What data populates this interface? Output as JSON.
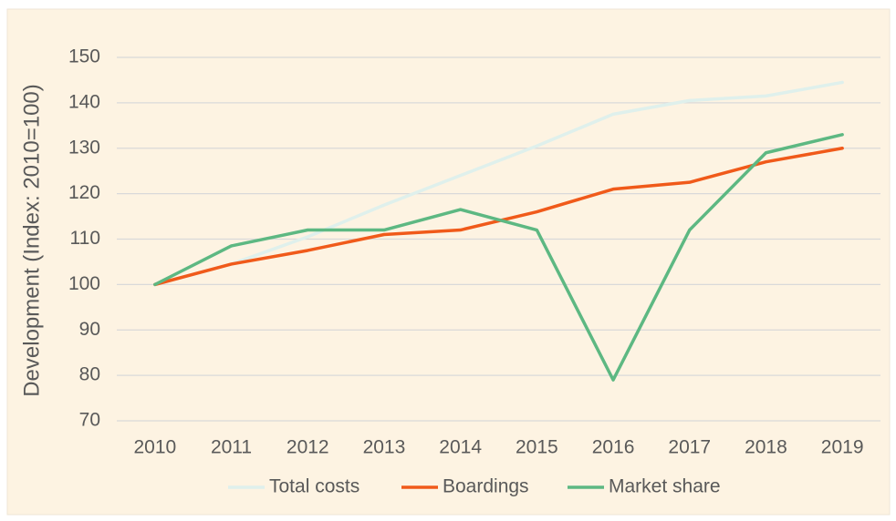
{
  "chart_data": {
    "type": "line",
    "y_label": "Development (Index: 2010=100)",
    "categories": [
      "2010",
      "2011",
      "2012",
      "2013",
      "2014",
      "2015",
      "2016",
      "2017",
      "2018",
      "2019"
    ],
    "series": [
      {
        "name": "Total costs",
        "color": "#dff0ec",
        "values": [
          100,
          104.5,
          110.5,
          117.5,
          124,
          130.5,
          137.5,
          140.5,
          141.5,
          144.5
        ]
      },
      {
        "name": "Boardings",
        "color": "#f05a1a",
        "values": [
          100,
          104.5,
          107.5,
          111,
          112,
          116,
          121,
          122.5,
          127,
          130
        ]
      },
      {
        "name": "Market share",
        "color": "#5db882",
        "values": [
          100,
          108.5,
          112,
          112,
          116.5,
          112,
          79,
          112,
          129,
          133
        ]
      }
    ],
    "ylim": [
      70,
      150
    ],
    "yticks": [
      70,
      80,
      90,
      100,
      110,
      120,
      130,
      140,
      150
    ],
    "grid": true,
    "legend": "bottom"
  }
}
